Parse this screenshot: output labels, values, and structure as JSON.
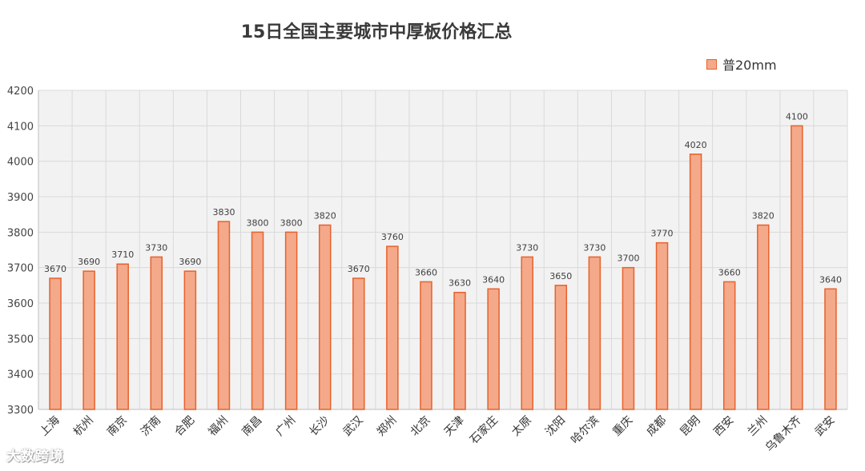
{
  "chart_data": {
    "type": "bar",
    "title": "15日全国主要城市中厚板价格汇总",
    "categories": [
      "上海",
      "杭州",
      "南京",
      "济南",
      "合肥",
      "福州",
      "南昌",
      "广州",
      "长沙",
      "武汉",
      "郑州",
      "北京",
      "天津",
      "石家庄",
      "太原",
      "沈阳",
      "哈尔滨",
      "重庆",
      "成都",
      "昆明",
      "西安",
      "兰州",
      "乌鲁木齐",
      "武安"
    ],
    "series": [
      {
        "name": "普20mm",
        "values": [
          3670,
          3690,
          3710,
          3730,
          3690,
          3830,
          3800,
          3800,
          3820,
          3670,
          3760,
          3660,
          3630,
          3640,
          3730,
          3650,
          3730,
          3700,
          3770,
          4020,
          3660,
          3820,
          4100,
          3640
        ]
      }
    ],
    "ylim": [
      3300,
      4200
    ],
    "yticks": [
      3300,
      3400,
      3500,
      3600,
      3700,
      3800,
      3900,
      4000,
      4100,
      4200
    ],
    "grid": true,
    "legend_position": "top-right",
    "bar_fill": "#F4A98A",
    "bar_stroke": "#E8622C",
    "plot_background": "#F2F2F2"
  },
  "watermark": "大数跨境"
}
